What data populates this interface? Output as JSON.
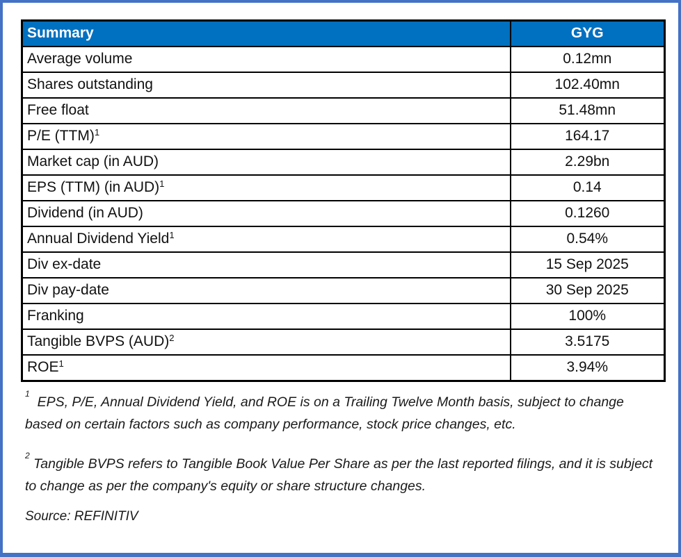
{
  "colors": {
    "header_blue": "#0070c0",
    "frame_blue": "#4472c4",
    "grid_black": "#000000"
  },
  "table": {
    "header": {
      "label": "Summary",
      "value": "GYG"
    },
    "rows": [
      {
        "label": "Average volume",
        "sup": "",
        "value": "0.12mn"
      },
      {
        "label": "Shares outstanding",
        "sup": "",
        "value": "102.40mn"
      },
      {
        "label": "Free float",
        "sup": "",
        "value": "51.48mn"
      },
      {
        "label": "P/E (TTM)",
        "sup": "1",
        "value": "164.17"
      },
      {
        "label": "Market cap (in AUD)",
        "sup": "",
        "value": "2.29bn"
      },
      {
        "label": "EPS (TTM) (in AUD)",
        "sup": "1",
        "value": "0.14"
      },
      {
        "label": "Dividend (in AUD)",
        "sup": "",
        "value": "0.1260"
      },
      {
        "label": "Annual Dividend Yield",
        "sup": "1",
        "value": "0.54%"
      },
      {
        "label": "Div ex-date",
        "sup": "",
        "value": "15 Sep 2025"
      },
      {
        "label": "Div pay-date",
        "sup": "",
        "value": "30 Sep 2025"
      },
      {
        "label": "Franking",
        "sup": "",
        "value": "100%"
      },
      {
        "label": "Tangible BVPS (AUD)",
        "sup": "2",
        "value": "3.5175"
      },
      {
        "label": "ROE",
        "sup": "1",
        "value": "3.94%"
      }
    ]
  },
  "footnotes": [
    {
      "marker": "1",
      "text": "EPS, P/E, Annual Dividend Yield, and ROE is on a Trailing Twelve Month basis, subject to change based on certain factors such as company performance, stock price changes, etc."
    },
    {
      "marker": "2",
      "text": "Tangible BVPS refers to Tangible Book Value Per Share as per the last reported filings, and it is subject to change as per the company's equity or share structure changes."
    }
  ],
  "source": "Source: REFINITIV"
}
